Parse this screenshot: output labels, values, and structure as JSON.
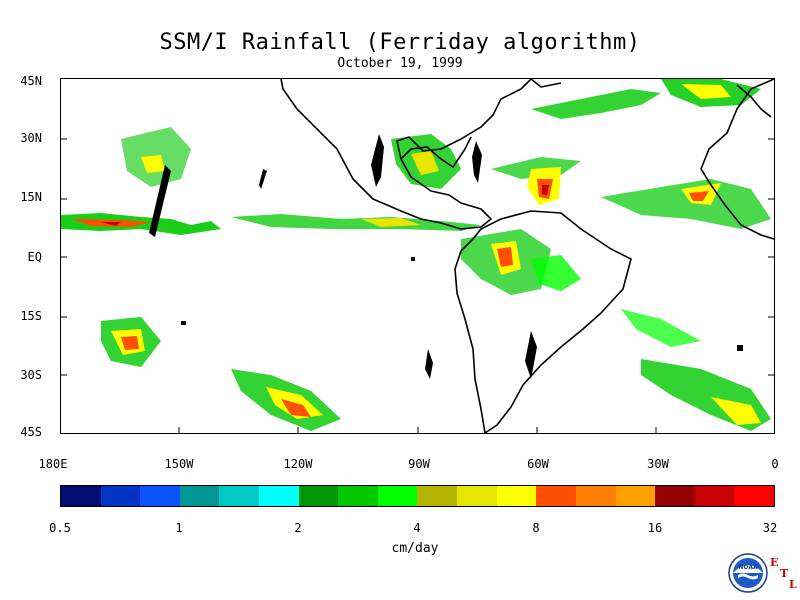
{
  "title": "SSM/I Rainfall (Ferriday algorithm)",
  "date": "October 19, 1999",
  "map": {
    "lat_labels": [
      "45N",
      "30N",
      "15N",
      "EQ",
      "15S",
      "30S",
      "45S"
    ],
    "lon_labels": [
      "180E",
      "150W",
      "120W",
      "90W",
      "60W",
      "30W",
      "0"
    ],
    "land_color": "#ffffff",
    "coastline_color": "#000000"
  },
  "colorbar": {
    "tick_labels": [
      "0.5",
      "1",
      "2",
      "4",
      "8",
      "16",
      "32"
    ],
    "units": "cm/day",
    "colors": [
      "#000d6e",
      "#0033c6",
      "#0a52ff",
      "#009696",
      "#00c8c8",
      "#00ffff",
      "#009600",
      "#00c800",
      "#00ff00",
      "#b4b400",
      "#e6e600",
      "#ffff00",
      "#ff5000",
      "#ff8000",
      "#ffa000",
      "#960000",
      "#c80000",
      "#ff0000"
    ]
  },
  "logo": {
    "name": "NOAA",
    "etl_letters": [
      "E",
      "T",
      "L"
    ]
  }
}
